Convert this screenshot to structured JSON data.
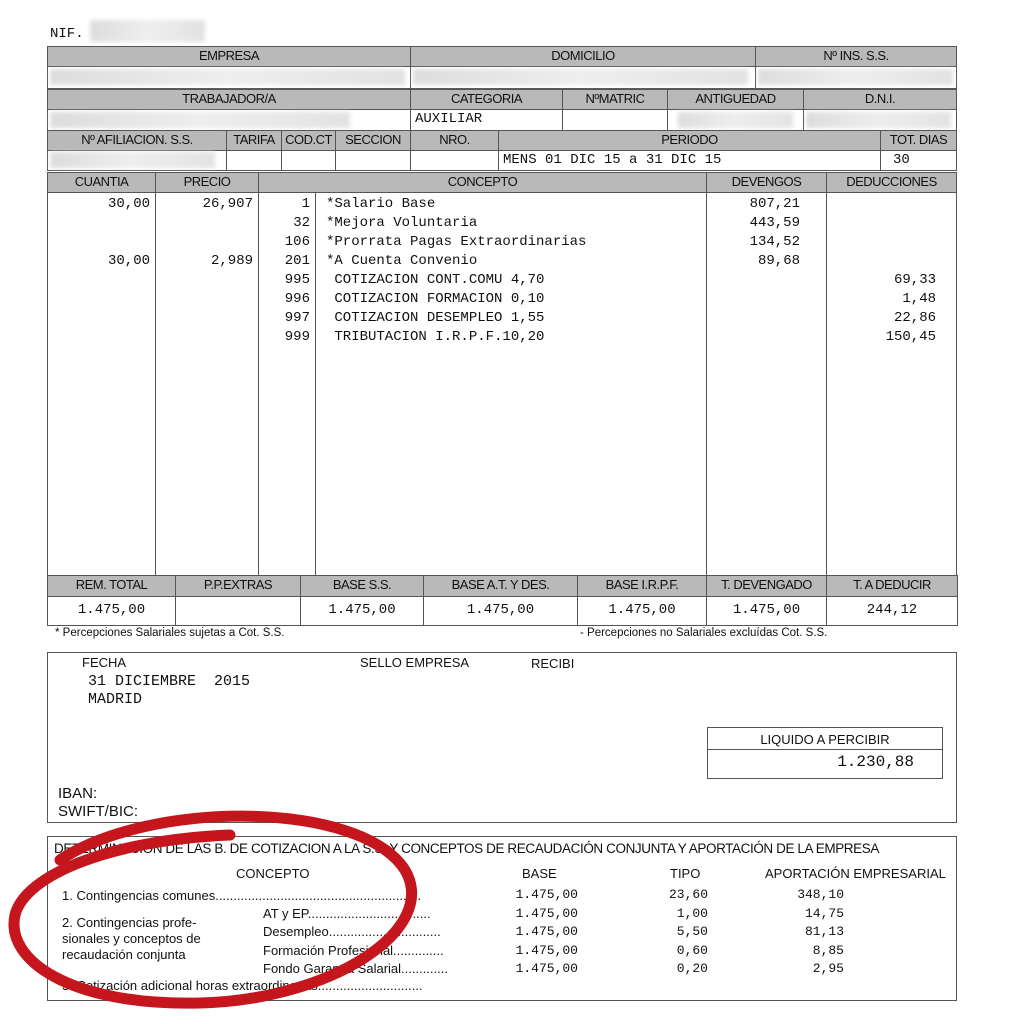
{
  "nif_label": "NIF.",
  "headers": {
    "empresa": "EMPRESA",
    "domicilio": "DOMICILIO",
    "ins_ss": "Nº INS. S.S.",
    "trabajador": "TRABAJADOR/A",
    "categoria": "CATEGORIA",
    "nmatric": "NºMATRIC",
    "antiguedad": "ANTIGUEDAD",
    "dni": "D.N.I.",
    "afiliacion": "Nº AFILIACION. S.S.",
    "tarifa": "TARIFA",
    "codct": "COD.CT",
    "seccion": "SECCION",
    "nro": "NRO.",
    "periodo": "PERIODO",
    "tot_dias": "TOT. DIAS",
    "cuantia": "CUANTIA",
    "precio": "PRECIO",
    "concepto": "CONCEPTO",
    "devengos": "DEVENGOS",
    "deducciones": "DEDUCCIONES"
  },
  "values": {
    "categoria": "AUXILIAR",
    "periodo": "MENS 01 DIC 15 a 31 DIC 15",
    "tot_dias": "30"
  },
  "lines": [
    {
      "cuantia": "30,00",
      "precio": "26,907",
      "code": "1",
      "concepto": "*Salario Base",
      "devengo": "807,21",
      "deduccion": ""
    },
    {
      "cuantia": "",
      "precio": "",
      "code": "32",
      "concepto": "*Mejora Voluntaria",
      "devengo": "443,59",
      "deduccion": ""
    },
    {
      "cuantia": "",
      "precio": "",
      "code": "106",
      "concepto": "*Prorrata Pagas Extraordinarias",
      "devengo": "134,52",
      "deduccion": ""
    },
    {
      "cuantia": "30,00",
      "precio": "2,989",
      "code": "201",
      "concepto": "*A Cuenta Convenio",
      "devengo": "89,68",
      "deduccion": ""
    },
    {
      "cuantia": "",
      "precio": "",
      "code": "995",
      "concepto": " COTIZACION CONT.COMU 4,70",
      "devengo": "",
      "deduccion": "69,33"
    },
    {
      "cuantia": "",
      "precio": "",
      "code": "996",
      "concepto": " COTIZACION FORMACION 0,10",
      "devengo": "",
      "deduccion": "1,48"
    },
    {
      "cuantia": "",
      "precio": "",
      "code": "997",
      "concepto": " COTIZACION DESEMPLEO 1,55",
      "devengo": "",
      "deduccion": "22,86"
    },
    {
      "cuantia": "",
      "precio": "",
      "code": "999",
      "concepto": " TRIBUTACION I.R.P.F.10,20",
      "devengo": "",
      "deduccion": "150,45"
    }
  ],
  "totals": {
    "headers": [
      "REM. TOTAL",
      "P.P.EXTRAS",
      "BASE S.S.",
      "BASE A.T. Y DES.",
      "BASE I.R.P.F.",
      "T. DEVENGADO",
      "T. A DEDUCIR"
    ],
    "values": [
      "1.475,00",
      "",
      "1.475,00",
      "1.475,00",
      "1.475,00",
      "1.475,00",
      "244,12"
    ]
  },
  "notes": {
    "left": "* Percepciones Salariales  sujetas a Cot. S.S.",
    "right": "- Percepciones no Salariales excluídas Cot. S.S."
  },
  "sign": {
    "fecha_label": "FECHA",
    "fecha": "31 DICIEMBRE  2015",
    "lugar": "MADRID",
    "sello": "SELLO EMPRESA",
    "recibi": "RECIBI",
    "liquido_label": "LIQUIDO A PERCIBIR",
    "liquido": "1.230,88",
    "iban": "IBAN:",
    "swift": "SWIFT/BIC:"
  },
  "bases": {
    "title": "DETERMINACION DE LAS B. DE COTIZACION A LA S.S. Y CONCEPTOS DE RECAUDACIÓN CONJUNTA Y APORTACIÓN DE LA EMPRESA",
    "col_concepto": "CONCEPTO",
    "col_base": "BASE",
    "col_tipo": "TIPO",
    "col_aport": "APORTACIÓN EMPRESARIAL",
    "c1": "1. Contingencias comunes.........................................................",
    "c2": "2. Contingencias profe-sionales y conceptos de recaudación conjunta",
    "c3": "3. Cotización adicional horas extraordinarias.............................",
    "rows": [
      {
        "label": "",
        "base": "1.475,00",
        "tipo": "23,60",
        "aport": "348,10"
      },
      {
        "label": "AT y EP..................................",
        "base": "1.475,00",
        "tipo": "1,00",
        "aport": "14,75"
      },
      {
        "label": "Desempleo...............................",
        "base": "1.475,00",
        "tipo": "5,50",
        "aport": "81,13"
      },
      {
        "label": "Formación Profesional..............",
        "base": "1.475,00",
        "tipo": "0,60",
        "aport": "8,85"
      },
      {
        "label": "Fondo Garantía Salarial.............",
        "base": "1.475,00",
        "tipo": "0,20",
        "aport": "2,95"
      }
    ]
  },
  "colors": {
    "header_bg": "#b9b9b9",
    "annotation": "#c4161c"
  }
}
